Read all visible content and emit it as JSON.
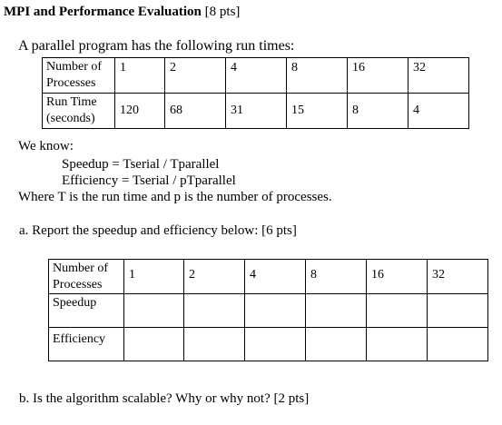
{
  "title": {
    "bold": "MPI and Performance Evaluation",
    "points": "[8 pts]"
  },
  "intro": "A parallel program has the following run times:",
  "run_table": {
    "header_label": [
      "Number of",
      "Processes"
    ],
    "run_label": [
      "Run Time",
      "(seconds)"
    ],
    "processes": [
      "1",
      "2",
      "4",
      "8",
      "16",
      "32"
    ],
    "times": [
      "120",
      "68",
      "31",
      "15",
      "8",
      "4"
    ]
  },
  "we_know": "We know:",
  "formula_speedup": "Speedup = Tserial / Tparallel",
  "formula_efficiency": "Efficiency = Tserial / pTparallel",
  "where_text": "Where T is the run time and p is the number of processes.",
  "question_a": "a.  Report the speedup and efficiency below: [6 pts]",
  "answer_table": {
    "header_label": [
      "Number of",
      "Processes"
    ],
    "speedup_label": "Speedup",
    "efficiency_label": "Efficiency",
    "processes": [
      "1",
      "2",
      "4",
      "8",
      "16",
      "32"
    ]
  },
  "question_b": "b.  Is the algorithm scalable? Why or why not? [2 pts]"
}
